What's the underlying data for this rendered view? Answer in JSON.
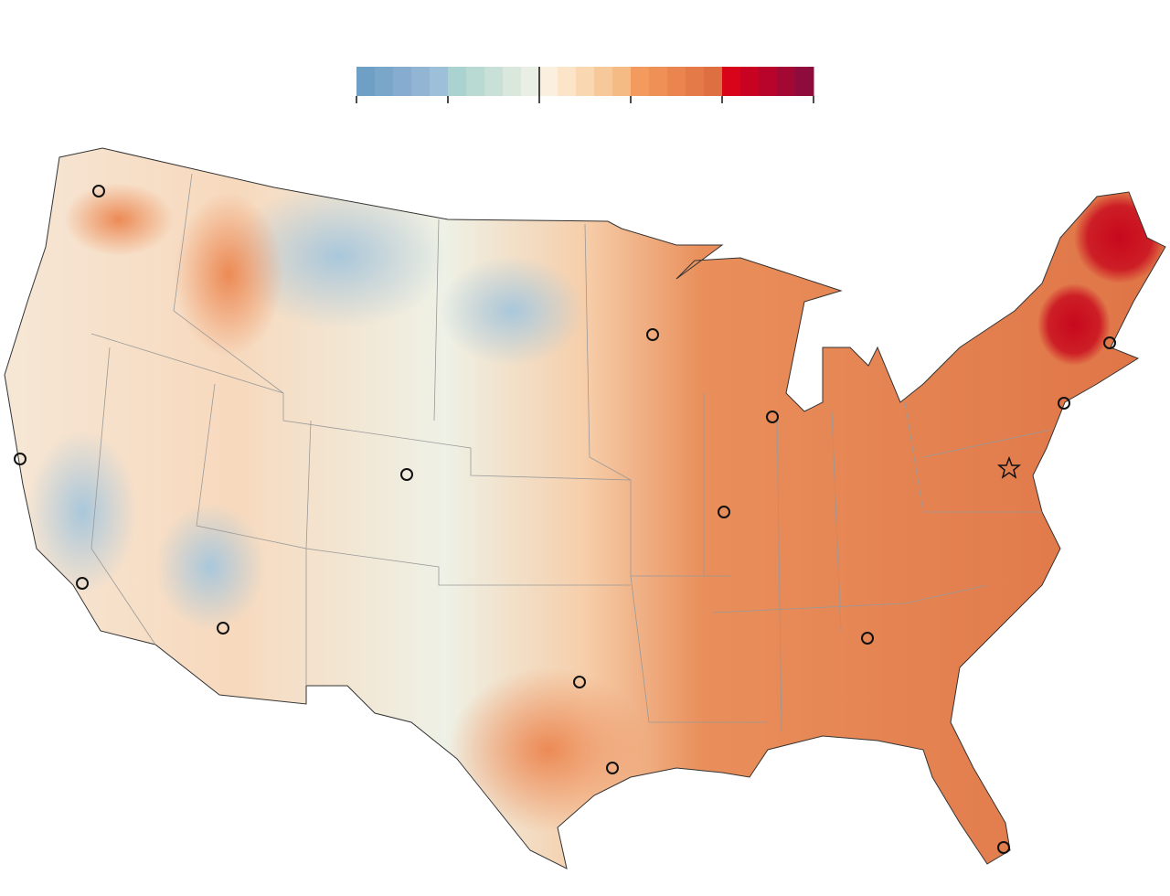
{
  "legend": {
    "colors": [
      "#6e9fc5",
      "#7aa6ca",
      "#86add0",
      "#92b5d4",
      "#9ebfd9",
      "#a9d2d0",
      "#b9d9d3",
      "#c9e0d8",
      "#d9e7dc",
      "#e9efe4",
      "#fbf0e0",
      "#fbe4c8",
      "#f9d7b0",
      "#f7c99a",
      "#f5bb84",
      "#f39b5e",
      "#ef9057",
      "#ea8550",
      "#e47a48",
      "#dd6f40",
      "#d7041a",
      "#c80322",
      "#b8042b",
      "#a30834",
      "#8d0c3b"
    ]
  }
}
